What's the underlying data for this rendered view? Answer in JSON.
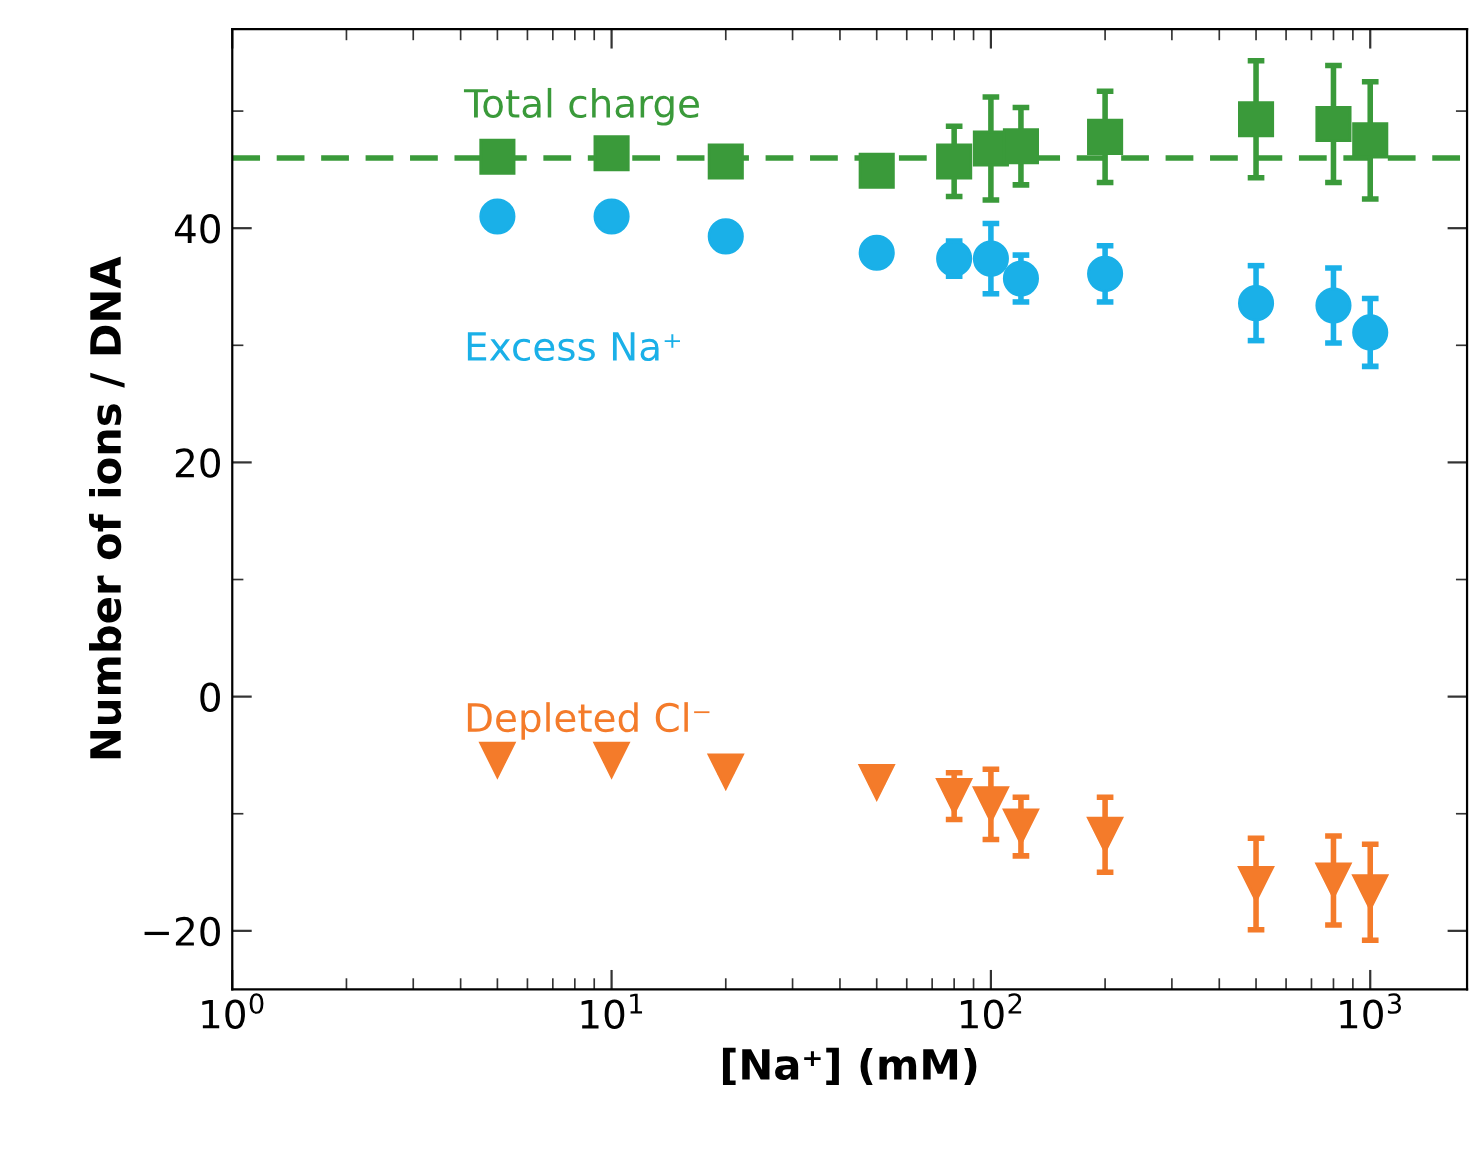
{
  "chart_data": {
    "type": "scatter",
    "xlabel": "[Na⁺] (mM)",
    "ylabel": "Number of ions / DNA",
    "log": "x",
    "grid": false,
    "legend": false,
    "xlim": [
      1,
      1800
    ],
    "xticks": [
      {
        "value": 1,
        "label": "10$^{0}$"
      },
      {
        "value": 10,
        "label": "10$^{1}$"
      },
      {
        "value": 100,
        "label": "10$^{2}$"
      },
      {
        "value": 1000,
        "label": "10$^{3}$"
      }
    ],
    "ylim": [
      -25,
      57
    ],
    "yticks": [
      {
        "value": -20,
        "label": "−20"
      },
      0,
      20,
      40
    ],
    "x": [
      5,
      10,
      20,
      50,
      80,
      100,
      120,
      200,
      500,
      800,
      1000
    ],
    "series": [
      {
        "name": "Total charge",
        "color": "#3a9a3a",
        "marker": "square",
        "values": [
          46.1,
          46.4,
          45.7,
          44.9,
          45.7,
          46.8,
          47.0,
          47.8,
          49.3,
          48.9,
          47.5
        ],
        "errors": [
          1,
          1,
          1,
          1,
          3,
          4.4,
          3.3,
          3.9,
          5,
          5,
          5
        ]
      },
      {
        "name": "Excess Na⁺",
        "color": "#1ab0e8",
        "marker": "circle",
        "values": [
          41.0,
          41.0,
          39.3,
          37.9,
          37.4,
          37.4,
          35.7,
          36.1,
          33.6,
          33.4,
          31.1
        ],
        "errors": [
          null,
          null,
          null,
          null,
          1.5,
          3,
          2,
          2.4,
          3.2,
          3.2,
          2.9
        ]
      },
      {
        "name": "Depleted Cl⁻",
        "color": "#f47b2a",
        "marker": "triangle",
        "values": [
          -5.4,
          -5.4,
          -6.4,
          -7.3,
          -8.5,
          -9.2,
          -11.1,
          -11.8,
          -16.0,
          -15.7,
          -16.7
        ],
        "errors": [
          null,
          null,
          null,
          null,
          2,
          3,
          2.5,
          3.2,
          3.9,
          3.8,
          4.1
        ]
      }
    ],
    "ref_lines": [
      {
        "axis": "y",
        "value": 46,
        "color": "#3a9a3a",
        "line_style": "dashed"
      }
    ]
  }
}
